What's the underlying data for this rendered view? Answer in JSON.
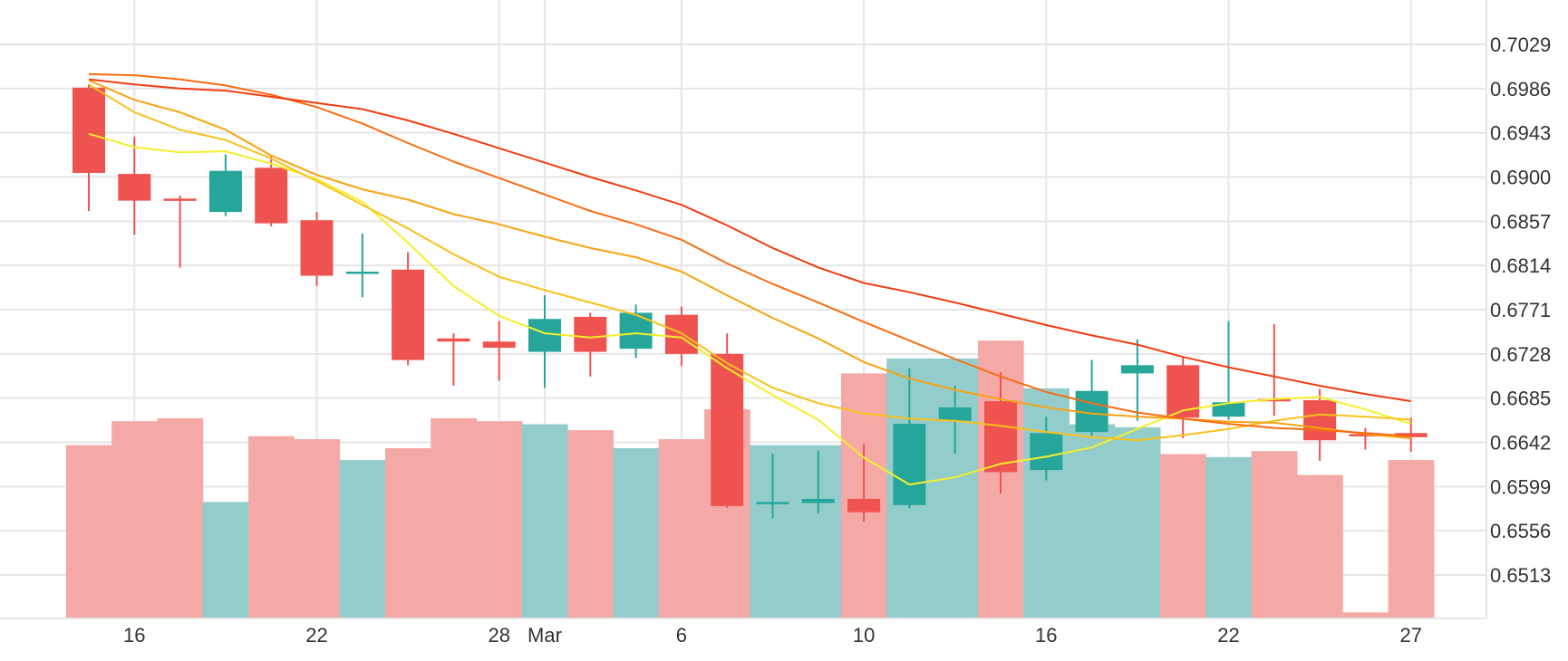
{
  "chart_data": {
    "type": "candlestick",
    "y_ticks": [
      "0.7029",
      "0.6986",
      "0.6943",
      "0.6900",
      "0.6857",
      "0.6814",
      "0.6771",
      "0.6728",
      "0.6685",
      "0.6642",
      "0.6599",
      "0.6556",
      "0.6513"
    ],
    "x_ticks": [
      {
        "label": "16",
        "index": 1
      },
      {
        "label": "22",
        "index": 5
      },
      {
        "label": "28",
        "index": 9
      },
      {
        "label": "Mar",
        "index": 10
      },
      {
        "label": "6",
        "index": 13
      },
      {
        "label": "10",
        "index": 17
      },
      {
        "label": "16",
        "index": 21
      },
      {
        "label": "22",
        "index": 25
      },
      {
        "label": "27",
        "index": 29
      }
    ],
    "ylim": [
      0.6475,
      0.7045
    ],
    "grid": true,
    "colors": {
      "up": "#26a69a",
      "down": "#ef5350",
      "up_volume": "#92cdcc",
      "down_volume": "#f5a9a7",
      "grid": "#e6e6e6",
      "text": "#333333"
    },
    "candles": [
      {
        "o": 0.6987,
        "h": 0.699,
        "l": 0.6867,
        "c": 0.6904
      },
      {
        "o": 0.6903,
        "h": 0.6939,
        "l": 0.6844,
        "c": 0.6877
      },
      {
        "o": 0.6879,
        "h": 0.6882,
        "l": 0.6812,
        "c": 0.6877
      },
      {
        "o": 0.6866,
        "h": 0.6922,
        "l": 0.6862,
        "c": 0.6906
      },
      {
        "o": 0.6909,
        "h": 0.692,
        "l": 0.6852,
        "c": 0.6855
      },
      {
        "o": 0.6858,
        "h": 0.6866,
        "l": 0.6794,
        "c": 0.6804
      },
      {
        "o": 0.6806,
        "h": 0.6845,
        "l": 0.6783,
        "c": 0.6808
      },
      {
        "o": 0.681,
        "h": 0.6827,
        "l": 0.6717,
        "c": 0.6722
      },
      {
        "o": 0.6743,
        "h": 0.6748,
        "l": 0.6697,
        "c": 0.674
      },
      {
        "o": 0.674,
        "h": 0.676,
        "l": 0.6702,
        "c": 0.6734
      },
      {
        "o": 0.673,
        "h": 0.6785,
        "l": 0.6695,
        "c": 0.6762
      },
      {
        "o": 0.6764,
        "h": 0.6768,
        "l": 0.6706,
        "c": 0.673
      },
      {
        "o": 0.6733,
        "h": 0.6776,
        "l": 0.6724,
        "c": 0.6768
      },
      {
        "o": 0.6766,
        "h": 0.6774,
        "l": 0.6716,
        "c": 0.6728
      },
      {
        "o": 0.6728,
        "h": 0.6748,
        "l": 0.6578,
        "c": 0.658
      },
      {
        "o": 0.6582,
        "h": 0.6631,
        "l": 0.6568,
        "c": 0.6584
      },
      {
        "o": 0.6583,
        "h": 0.6634,
        "l": 0.6573,
        "c": 0.6587
      },
      {
        "o": 0.6587,
        "h": 0.664,
        "l": 0.6565,
        "c": 0.6574
      },
      {
        "o": 0.6581,
        "h": 0.6714,
        "l": 0.6578,
        "c": 0.666
      },
      {
        "o": 0.6663,
        "h": 0.6697,
        "l": 0.6631,
        "c": 0.6676
      },
      {
        "o": 0.6682,
        "h": 0.671,
        "l": 0.6592,
        "c": 0.6613
      },
      {
        "o": 0.6615,
        "h": 0.6667,
        "l": 0.6605,
        "c": 0.6651
      },
      {
        "o": 0.6652,
        "h": 0.6722,
        "l": 0.6648,
        "c": 0.6692
      },
      {
        "o": 0.6709,
        "h": 0.6742,
        "l": 0.6663,
        "c": 0.6717
      },
      {
        "o": 0.6717,
        "h": 0.6725,
        "l": 0.6646,
        "c": 0.6666
      },
      {
        "o": 0.6667,
        "h": 0.676,
        "l": 0.6664,
        "c": 0.6681
      },
      {
        "o": 0.6684,
        "h": 0.6757,
        "l": 0.6668,
        "c": 0.6683
      },
      {
        "o": 0.6683,
        "h": 0.6694,
        "l": 0.6624,
        "c": 0.6644
      },
      {
        "o": 0.665,
        "h": 0.6656,
        "l": 0.6635,
        "c": 0.6649
      },
      {
        "o": 0.6651,
        "h": 0.6666,
        "l": 0.6633,
        "c": 0.6647
      }
    ],
    "volume": [
      0.58,
      0.66,
      0.67,
      0.39,
      0.61,
      0.6,
      0.53,
      0.57,
      0.67,
      0.66,
      0.65,
      0.63,
      0.57,
      0.6,
      0.7,
      0.58,
      0.58,
      0.82,
      0.87,
      0.87,
      0.93,
      0.77,
      0.65,
      0.64,
      0.55,
      0.54,
      0.56,
      0.48,
      0.02,
      0.53
    ],
    "moving_averages": [
      {
        "color": "#f4ef2a",
        "values": [
          0.6942,
          0.6929,
          0.6924,
          0.6925,
          0.6913,
          0.6898,
          0.6876,
          0.6836,
          0.6794,
          0.6765,
          0.6748,
          0.6744,
          0.6748,
          0.6744,
          0.6714,
          0.6688,
          0.6664,
          0.6627,
          0.6601,
          0.6608,
          0.6621,
          0.6628,
          0.6637,
          0.6655,
          0.6673,
          0.668,
          0.6684,
          0.6686,
          0.6674,
          0.666
        ]
      },
      {
        "color": "#f8c21a",
        "values": [
          0.699,
          0.6963,
          0.6946,
          0.6936,
          0.6918,
          0.6896,
          0.6873,
          0.685,
          0.6825,
          0.6803,
          0.679,
          0.6778,
          0.6766,
          0.6748,
          0.6719,
          0.6695,
          0.668,
          0.667,
          0.6665,
          0.6663,
          0.6658,
          0.6652,
          0.6647,
          0.6644,
          0.6649,
          0.6655,
          0.6663,
          0.6669,
          0.6667,
          0.6664
        ]
      },
      {
        "color": "#f8a312",
        "values": [
          0.6994,
          0.6975,
          0.6963,
          0.6946,
          0.6921,
          0.6902,
          0.6888,
          0.6878,
          0.6864,
          0.6854,
          0.6842,
          0.6831,
          0.6822,
          0.6808,
          0.6785,
          0.6763,
          0.6743,
          0.672,
          0.6704,
          0.6693,
          0.6684,
          0.6676,
          0.667,
          0.6667,
          0.6665,
          0.6662,
          0.6661,
          0.6656,
          0.665,
          0.6646
        ]
      },
      {
        "color": "#f76d12",
        "values": [
          0.7,
          0.6999,
          0.6995,
          0.6989,
          0.698,
          0.6968,
          0.6952,
          0.6933,
          0.6915,
          0.6899,
          0.6883,
          0.6867,
          0.6854,
          0.6839,
          0.6816,
          0.6796,
          0.6778,
          0.6759,
          0.6741,
          0.6723,
          0.6706,
          0.6691,
          0.668,
          0.6671,
          0.6665,
          0.666,
          0.6656,
          0.6654,
          0.6651,
          0.6648
        ]
      },
      {
        "color": "#ef3d12",
        "values": [
          0.6995,
          0.699,
          0.6986,
          0.6984,
          0.6978,
          0.6972,
          0.6966,
          0.6955,
          0.6942,
          0.6928,
          0.6914,
          0.69,
          0.6887,
          0.6873,
          0.6853,
          0.6831,
          0.6812,
          0.6797,
          0.6788,
          0.6778,
          0.6767,
          0.6756,
          0.6746,
          0.6737,
          0.6725,
          0.6715,
          0.6706,
          0.6697,
          0.6689,
          0.6682
        ]
      }
    ]
  }
}
